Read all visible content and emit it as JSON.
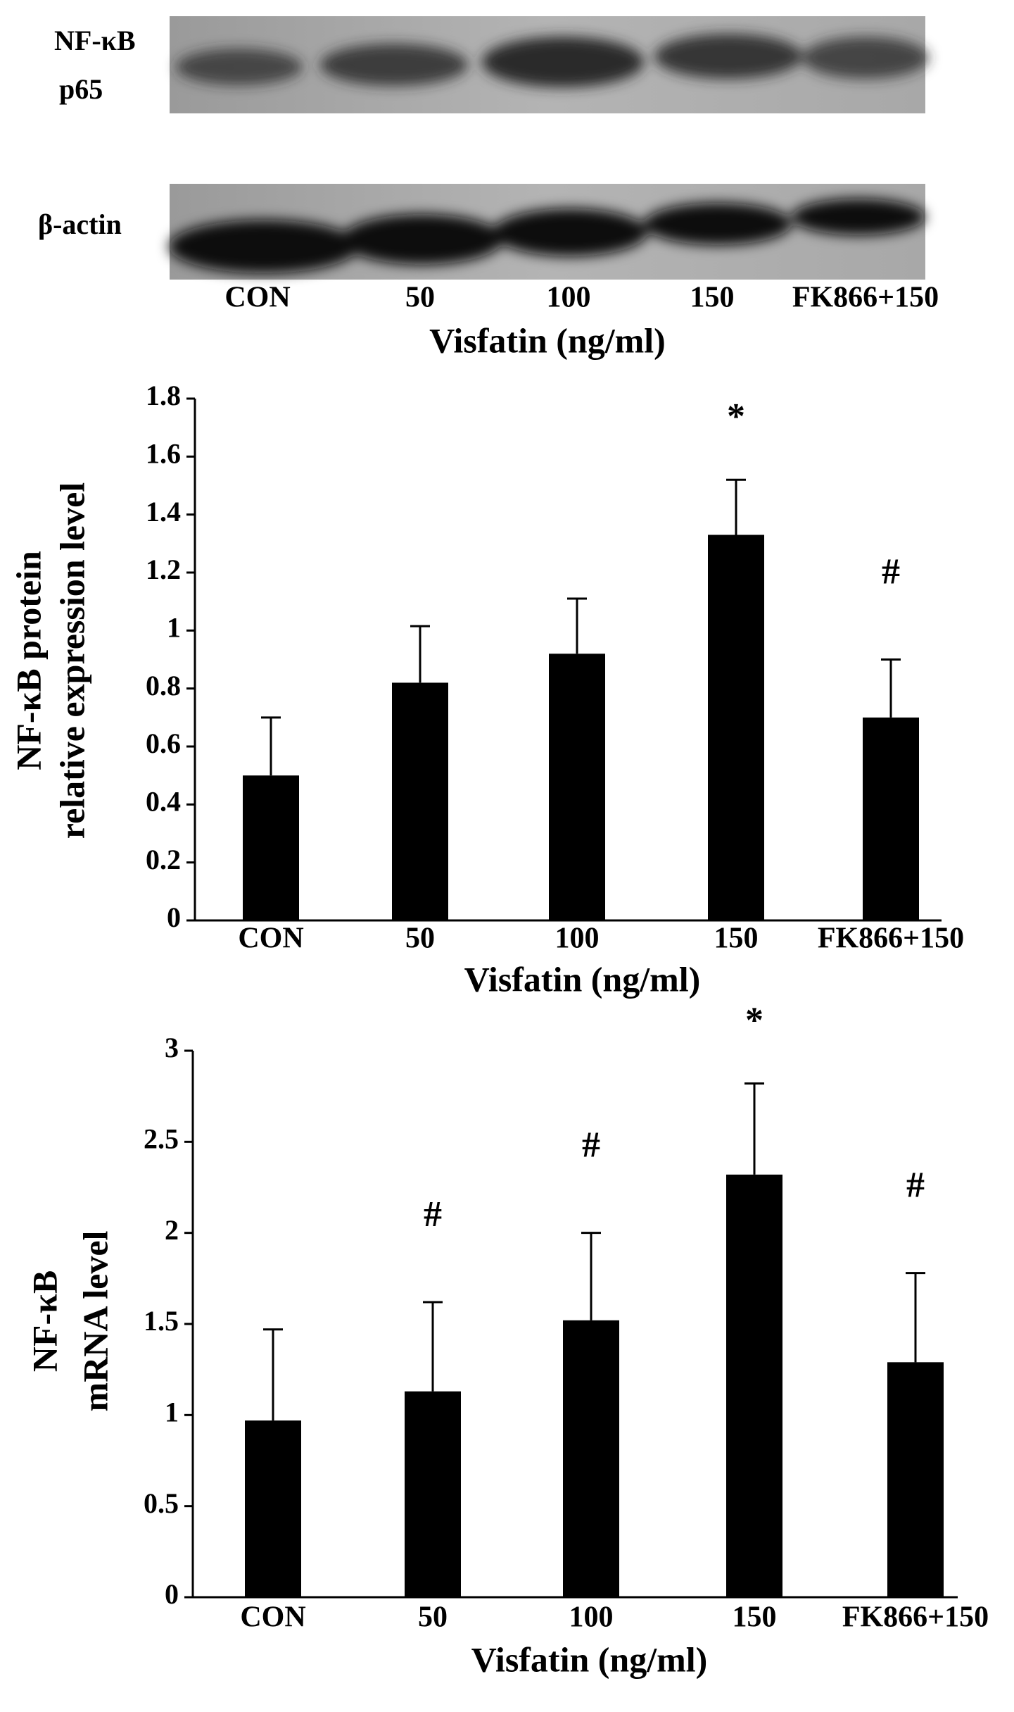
{
  "blot": {
    "rows": [
      [
        "NF-κB",
        "p65"
      ],
      [
        "β-actin"
      ]
    ],
    "lanes": [
      "CON",
      "50",
      "100",
      "150",
      "FK866+150"
    ],
    "x_label": "Visfatin (ng/ml)"
  },
  "chart_data": [
    {
      "type": "bar",
      "y_label": [
        "NF-κB protein",
        "relative expression level"
      ],
      "x_label": "Visfatin (ng/ml)",
      "categories": [
        "CON",
        "50",
        "100",
        "150",
        "FK866+150"
      ],
      "values": [
        0.5,
        0.82,
        0.92,
        1.33,
        0.7
      ],
      "errors": [
        0.2,
        0.195,
        0.19,
        0.19,
        0.2
      ],
      "markers": [
        null,
        null,
        null,
        "*",
        "#"
      ],
      "color": "#000000",
      "ylim": [
        0,
        1.8
      ],
      "yticks": [
        0,
        0.2,
        0.4,
        0.6,
        0.8,
        1,
        1.2,
        1.4,
        1.6,
        1.8
      ]
    },
    {
      "type": "bar",
      "y_label": [
        "NF-κB",
        "mRNA level"
      ],
      "x_label": "Visfatin (ng/ml)",
      "categories": [
        "CON",
        "50",
        "100",
        "150",
        "FK866+150"
      ],
      "values": [
        0.97,
        1.13,
        1.52,
        2.32,
        1.29
      ],
      "errors": [
        0.5,
        0.49,
        0.48,
        0.5,
        0.49
      ],
      "markers": [
        null,
        "#",
        "#",
        "*",
        "#"
      ],
      "color": "#000000",
      "ylim": [
        0,
        3
      ],
      "yticks": [
        0,
        0.5,
        1,
        1.5,
        2,
        2.5,
        3
      ]
    }
  ]
}
